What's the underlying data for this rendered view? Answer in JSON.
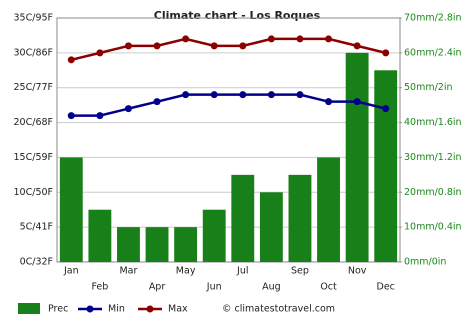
{
  "chart_data": {
    "type": "bar-line",
    "title": "Climate chart - Los Roques",
    "categories": [
      "Jan",
      "Feb",
      "Mar",
      "Apr",
      "May",
      "Jun",
      "Jul",
      "Aug",
      "Sep",
      "Oct",
      "Nov",
      "Dec"
    ],
    "series": [
      {
        "name": "Prec",
        "color": "#188018",
        "axis": "y2",
        "kind": "bar",
        "values": [
          30,
          15,
          10,
          10,
          10,
          15,
          25,
          20,
          25,
          30,
          60,
          55
        ]
      },
      {
        "name": "Min",
        "color": "#00008b",
        "kind": "line",
        "values": [
          21,
          21,
          22,
          23,
          24,
          24,
          24,
          24,
          24,
          23,
          23,
          22
        ]
      },
      {
        "name": "Max",
        "color": "#8b0000",
        "kind": "line",
        "values": [
          29,
          30,
          31,
          31,
          32,
          31,
          31,
          32,
          32,
          32,
          31,
          30
        ]
      }
    ],
    "ylim": [
      0,
      35
    ],
    "yticks": [
      {
        "value": 0,
        "label": "0C/32F"
      },
      {
        "value": 5,
        "label": "5C/41F"
      },
      {
        "value": 10,
        "label": "10C/50F"
      },
      {
        "value": 15,
        "label": "15C/59F"
      },
      {
        "value": 20,
        "label": "20C/68F"
      },
      {
        "value": 25,
        "label": "25C/77F"
      },
      {
        "value": 30,
        "label": "30C/86F"
      },
      {
        "value": 35,
        "label": "35C/95F"
      }
    ],
    "y2lim": [
      0,
      70
    ],
    "y2ticks": [
      {
        "value": 0,
        "label": "0mm/0in"
      },
      {
        "value": 10,
        "label": "10mm/0.4in"
      },
      {
        "value": 20,
        "label": "20mm/0.8in"
      },
      {
        "value": 30,
        "label": "30mm/1.2in"
      },
      {
        "value": 40,
        "label": "40mm/1.6in"
      },
      {
        "value": 50,
        "label": "50mm/2in"
      },
      {
        "value": 60,
        "label": "60mm/2.4in"
      },
      {
        "value": 70,
        "label": "70mm/2.8in"
      }
    ],
    "grid": true,
    "credit": "© climatestotravel.com"
  }
}
